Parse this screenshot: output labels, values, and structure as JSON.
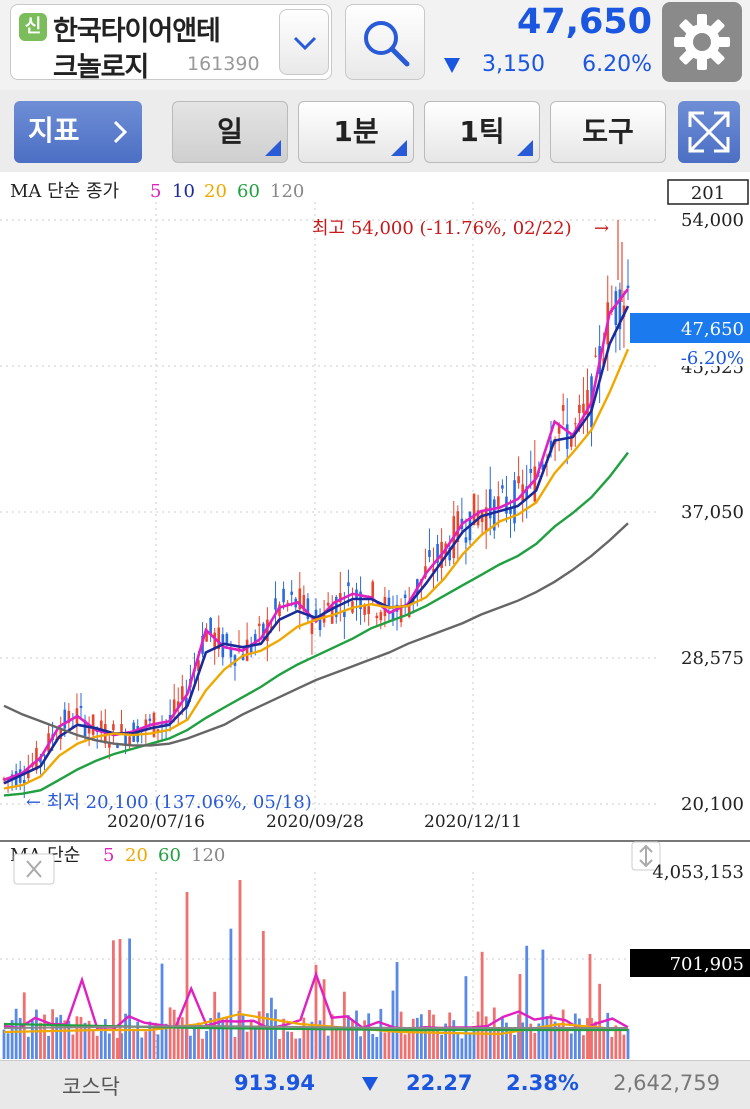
{
  "header": {
    "badge": "신",
    "name_line1": "한국타이어앤테",
    "name_line2": "크놀로지",
    "code": "161390",
    "price": "47,650",
    "change": "3,150",
    "change_pct": "6.20%",
    "change_direction": "down",
    "accent_color": "#1a56e0"
  },
  "toolbar": {
    "indicator_label": "지표",
    "tabs": [
      {
        "label": "일",
        "selected": true
      },
      {
        "label": "1분",
        "selected": false
      },
      {
        "label": "1틱",
        "selected": false
      },
      {
        "label": "도구",
        "selected": false
      }
    ]
  },
  "price_chart": {
    "legend_prefix": "MA 단순 종가",
    "ma_periods": [
      "5",
      "10",
      "20",
      "60",
      "120"
    ],
    "ma_colors": [
      "#e020c0",
      "#1a2a9a",
      "#f0a800",
      "#20a040",
      "#606060"
    ],
    "box_value": "201",
    "y_ticks": [
      "54,000",
      "45,525",
      "37,050",
      "28,575",
      "20,100"
    ],
    "x_ticks": [
      "2020/07/16",
      "2020/09/28",
      "2020/12/11"
    ],
    "high_annotation": "최고 54,000 (-11.76%, 02/22)",
    "low_annotation": "← 최저 20,100 (137.06%, 05/18)",
    "current_price_label": "47,650",
    "current_change_label": "-6.20%"
  },
  "volume_chart": {
    "legend_prefix": "MA 단순",
    "ma_periods": [
      "5",
      "20",
      "60",
      "120"
    ],
    "ma_colors": [
      "#e020c0",
      "#f0a800",
      "#20a040",
      "#606060"
    ],
    "max_label": "4,053,153",
    "current_label": "701,905"
  },
  "market_bar": {
    "name": "코스닥",
    "index": "913.94",
    "change": "22.27",
    "change_pct": "2.38%",
    "volume": "2,642,759"
  },
  "chart_data": {
    "type": "line",
    "title": "",
    "y_axis_ticks": [
      54000,
      45525,
      37050,
      28575,
      20100
    ],
    "ylim": [
      20100,
      54000
    ],
    "x_tick_labels": [
      "2020/07/16",
      "2020/09/28",
      "2020/12/11"
    ],
    "high": {
      "value": 54000,
      "pct": -11.76,
      "date": "02/22"
    },
    "low": {
      "value": 20100,
      "pct": 137.06,
      "date": "05/18"
    },
    "last_close": 47650,
    "series": [
      {
        "name": "5",
        "values": [
          21500,
          21900,
          22800,
          24600,
          25200,
          24400,
          24100,
          24300,
          24700,
          24900,
          26500,
          30200,
          29200,
          29000,
          29700,
          31500,
          31800,
          30700,
          31800,
          32300,
          32100,
          31200,
          31700,
          33500,
          34800,
          36400,
          37100,
          37300,
          37800,
          39000,
          42300,
          41500,
          43400,
          48600,
          50000
        ]
      },
      {
        "name": "10",
        "values": [
          21300,
          21800,
          22300,
          24000,
          24700,
          24500,
          24200,
          24200,
          24500,
          24700,
          25800,
          28900,
          29400,
          29200,
          29400,
          30800,
          31300,
          30900,
          31500,
          32000,
          32000,
          31500,
          31600,
          32900,
          34400,
          35900,
          36800,
          37100,
          37400,
          38300,
          41200,
          41400,
          42900,
          46800,
          49000
        ]
      },
      {
        "name": "20",
        "values": [
          21000,
          21200,
          21700,
          22900,
          23600,
          24000,
          24200,
          24100,
          24200,
          24400,
          25000,
          26700,
          27900,
          28700,
          29000,
          29600,
          30400,
          30800,
          31100,
          31500,
          31700,
          31500,
          31600,
          32100,
          33200,
          34600,
          35700,
          36500,
          36900,
          37600,
          39300,
          40500,
          41800,
          44000,
          46500
        ]
      },
      {
        "name": "60",
        "values": [
          20600,
          20700,
          20900,
          21500,
          22100,
          22600,
          23000,
          23300,
          23600,
          23900,
          24400,
          25100,
          25700,
          26300,
          26900,
          27600,
          28200,
          28700,
          29200,
          29700,
          30300,
          30700,
          31100,
          31600,
          32200,
          32800,
          33400,
          34000,
          34500,
          35200,
          36200,
          37000,
          37900,
          39100,
          40500
        ]
      },
      {
        "name": "120",
        "values": [
          25800,
          25300,
          24900,
          24500,
          24100,
          23800,
          23600,
          23500,
          23500,
          23600,
          23900,
          24300,
          24700,
          25300,
          25800,
          26300,
          26800,
          27300,
          27700,
          28100,
          28500,
          28900,
          29400,
          29800,
          30200,
          30600,
          31100,
          31500,
          31900,
          32400,
          33000,
          33700,
          34500,
          35400,
          36400
        ]
      }
    ]
  }
}
